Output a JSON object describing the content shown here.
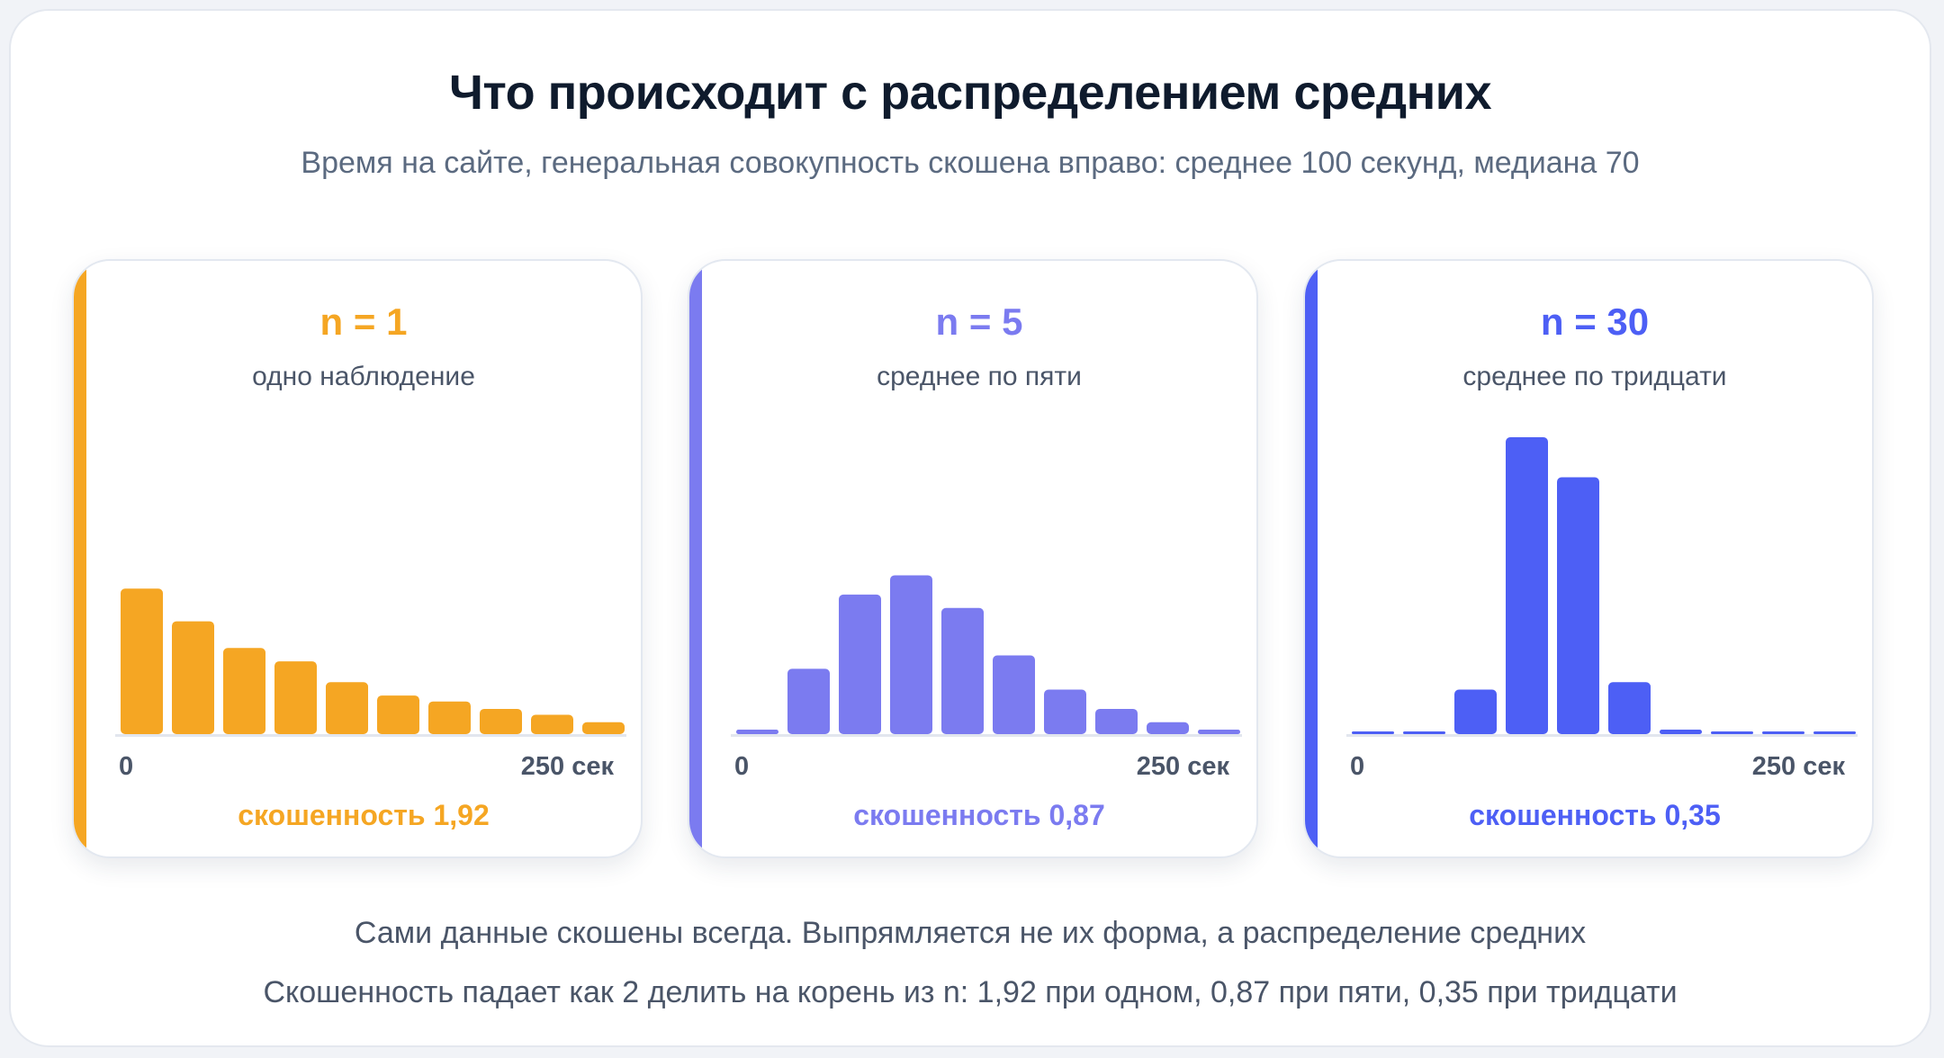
{
  "title": "Что происходит с распределением средних",
  "subtitle": "Время на сайте, генеральная совокупность скошена вправо: среднее 100 секунд, медиана 70",
  "colors": {
    "orange": "#f5a623",
    "indigo": "#7b7bf0",
    "blue": "#4d5ff5"
  },
  "footer": {
    "line1": "Сами данные скошены всегда. Выпрямляется не их форма, а распределение средних",
    "line2": "Скошенность падает как 2 делить на корень из n: 1,92 при одном, 0,87 при пяти, 0,35 при тридцати"
  },
  "chart_data": [
    {
      "type": "bar",
      "title": "n = 1",
      "subtitle": "одно наблюдение",
      "x_range_labels": [
        "0",
        "250 сек"
      ],
      "skewness_label": "скошенность 1,92",
      "color": "#f5a623",
      "values": [
        0.49,
        0.38,
        0.29,
        0.245,
        0.175,
        0.13,
        0.11,
        0.085,
        0.065,
        0.04
      ],
      "ylim": [
        0,
        1
      ]
    },
    {
      "type": "bar",
      "title": "n = 5",
      "subtitle": "среднее по пяти",
      "x_range_labels": [
        "0",
        "250 сек"
      ],
      "skewness_label": "скошенность 0,87",
      "color": "#7b7bf0",
      "values": [
        0.015,
        0.22,
        0.47,
        0.535,
        0.425,
        0.265,
        0.15,
        0.085,
        0.04,
        0.015
      ],
      "ylim": [
        0,
        1
      ]
    },
    {
      "type": "bar",
      "title": "n = 30",
      "subtitle": "среднее по тридцати",
      "x_range_labels": [
        "0",
        "250 сек"
      ],
      "skewness_label": "скошенность 0,35",
      "color": "#4d5ff5",
      "values": [
        0.008,
        0.008,
        0.15,
        1.0,
        0.865,
        0.175,
        0.015,
        0.008,
        0.008,
        0.008
      ],
      "ylim": [
        0,
        1
      ]
    }
  ]
}
